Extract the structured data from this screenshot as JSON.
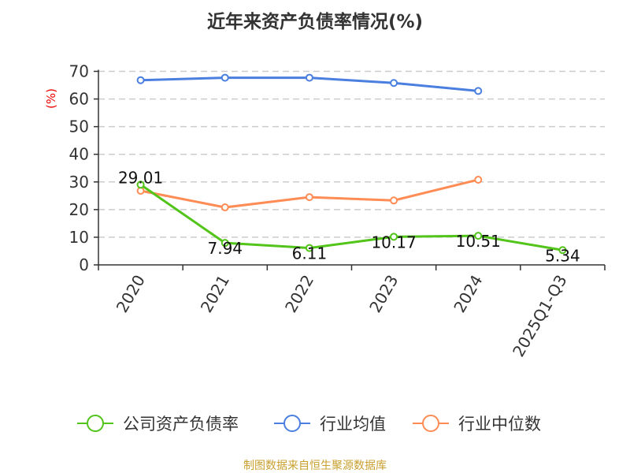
{
  "chart_data": {
    "type": "line",
    "title": "近年来资产负债率情况(%)",
    "ylabel": "(%)",
    "categories": [
      "2020",
      "2021",
      "2022",
      "2023",
      "2024",
      "2025Q1-Q3"
    ],
    "ylim": [
      0,
      70
    ],
    "yticks": [
      0,
      10,
      20,
      30,
      40,
      50,
      60,
      70
    ],
    "grid": true,
    "legend_position": "bottom",
    "series": [
      {
        "name": "公司资产负债率",
        "color": "#52c41a",
        "values": [
          29.01,
          7.94,
          6.11,
          10.17,
          10.51,
          5.34
        ],
        "labels": [
          "29.01",
          "7.94",
          "6.11",
          "10.17",
          "10.51",
          "5.34"
        ]
      },
      {
        "name": "行业均值",
        "color": "#4a7fe0",
        "values": [
          66.8,
          67.7,
          67.7,
          65.8,
          62.9,
          null
        ]
      },
      {
        "name": "行业中位数",
        "color": "#ff8c55",
        "values": [
          26.8,
          20.8,
          24.5,
          23.3,
          30.8,
          null
        ]
      }
    ]
  },
  "source": "制图数据来自恒生聚源数据库"
}
